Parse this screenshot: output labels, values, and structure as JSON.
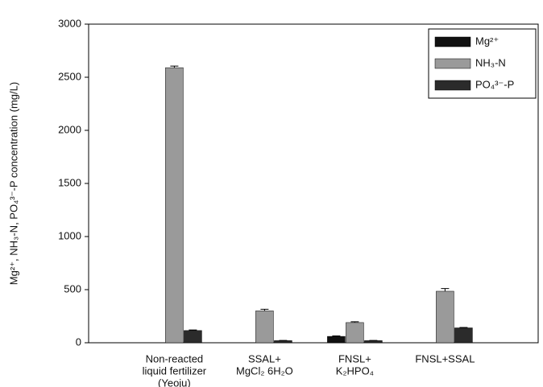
{
  "chart_data": {
    "type": "bar",
    "y_label": "Mg²⁺, NH₃-N, PO₄³⁻-P concentration (mg/L)",
    "categories": [
      [
        "Non-reacted",
        "liquid fertilizer",
        "(Yeoju)"
      ],
      [
        "SSAL+",
        "MgCl₂ 6H₂O"
      ],
      [
        "FNSL+",
        "K₂HPO₄"
      ],
      [
        "FNSL+SSAL"
      ]
    ],
    "series": [
      {
        "name": "Mg²⁺",
        "color": "#111111",
        "values": [
          0,
          0,
          60,
          0
        ],
        "errors": [
          0,
          0,
          4,
          0
        ]
      },
      {
        "name": "NH₃-N",
        "color": "#9a9a9a",
        "values": [
          2590,
          300,
          190,
          485
        ],
        "errors": [
          15,
          15,
          8,
          25
        ]
      },
      {
        "name": "PO₄³⁻-P",
        "color": "#2b2b2b",
        "values": [
          115,
          20,
          20,
          140
        ],
        "errors": [
          5,
          2,
          2,
          4
        ]
      }
    ],
    "ylim": [
      0,
      3000
    ],
    "yticks": [
      0,
      500,
      1000,
      1500,
      2000,
      2500,
      3000
    ],
    "legend": "upper right"
  }
}
